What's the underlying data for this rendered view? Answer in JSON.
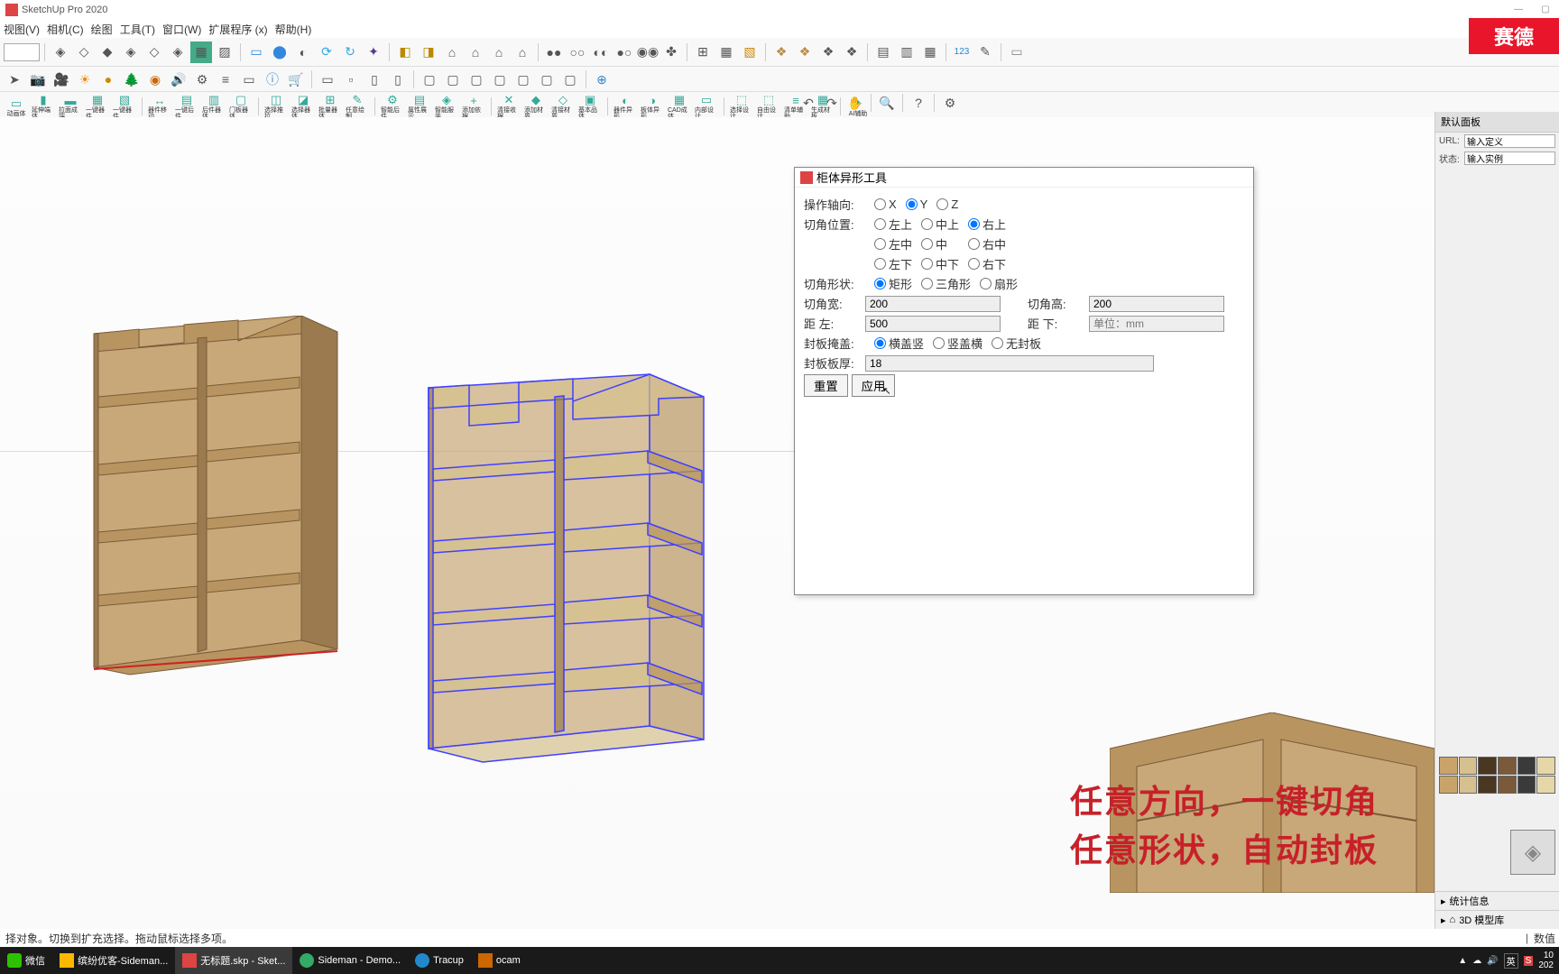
{
  "app": {
    "title": "SketchUp Pro 2020"
  },
  "menu": [
    "视图(V)",
    "相机(C)",
    "绘图",
    "工具(T)",
    "窗口(W)",
    "扩展程序 (x)",
    "帮助(H)"
  ],
  "brand": "赛德",
  "right_panel": {
    "title": "默认面板",
    "url_label": "URL:",
    "url_value": "输入定义",
    "state_label": "状态:",
    "state_value": "输入实例",
    "bottom_sections": [
      "统计信息",
      "3D 模型库",
      "数值"
    ]
  },
  "swatch_colors": [
    "#c9a46a",
    "#d6c08f",
    "#4a3621",
    "#7a5a3a",
    "#3a3a3a",
    "#e5d7a8",
    "#c9a46a",
    "#d6c08f",
    "#4a3621",
    "#7a5a3a",
    "#3a3a3a",
    "#e5d7a8"
  ],
  "dialog": {
    "title": "柜体异形工具",
    "axis_label": "操作轴向:",
    "axis_opts": [
      "X",
      "Y",
      "Z"
    ],
    "axis_selected": 1,
    "corner_pos_label": "切角位置:",
    "corner_pos_r1": [
      "左上",
      "中上",
      "右上"
    ],
    "corner_pos_r2": [
      "左中",
      "中",
      "右中"
    ],
    "corner_pos_r3": [
      "左下",
      "中下",
      "右下"
    ],
    "corner_pos_selected": "右上",
    "corner_shape_label": "切角形状:",
    "corner_shape_opts": [
      "矩形",
      "三角形",
      "扇形"
    ],
    "corner_shape_selected": 0,
    "width_label": "切角宽:",
    "width_val": "200",
    "height_label": "切角高:",
    "height_val": "200",
    "dist_left_label": "距 左:",
    "dist_left_val": "500",
    "dist_bottom_label": "距 下:",
    "unit_ph": "单位：mm",
    "cover_label": "封板掩盖:",
    "cover_opts": [
      "横盖竖",
      "竖盖横",
      "无封板"
    ],
    "cover_selected": 0,
    "thickness_label": "封板板厚:",
    "thickness_val": "18",
    "btn_reset": "重置",
    "btn_apply": "应用"
  },
  "overlay": {
    "line1": "任意方向，一键切角",
    "line2": "任意形状，自动封板"
  },
  "status": {
    "text": "择对象。切换到扩充选择。拖动鼠标选择多项。",
    "numlabel": "数值"
  },
  "taskbar": {
    "items": [
      "微信",
      "缤纷优客-Sideman...",
      "无标题.skp - Sket...",
      "Sideman - Demo...",
      "Tracup",
      "ocam"
    ],
    "time": "10",
    "date": "202"
  },
  "toolbar3_labels": [
    "动画体",
    "延伸端体",
    "拉面成端",
    "一键器件",
    "一键器件",
    "器件移动",
    "一键后件",
    "后件器体",
    "门板器体",
    "选择推拉",
    "选择器体",
    "批量器体",
    "任意绘制",
    "智能后件",
    "属性展示",
    "智能服装",
    "添加依据",
    "清接收据",
    "添加材质",
    "清接材质",
    "基本品体",
    "器件异形",
    "板体异形",
    "CAD成体",
    "内部设计",
    "选择设计",
    "自由设计",
    "清单辅助",
    "生成材板",
    "AI辅助"
  ],
  "cabinet": {
    "wood_light": "#c8a878",
    "wood_mid": "#b89560",
    "wood_dark": "#9a7a4e",
    "wood_edge": "#7a5a3a",
    "sel_color": "#4040ff",
    "floor_shadow": "#e8dcc8"
  }
}
